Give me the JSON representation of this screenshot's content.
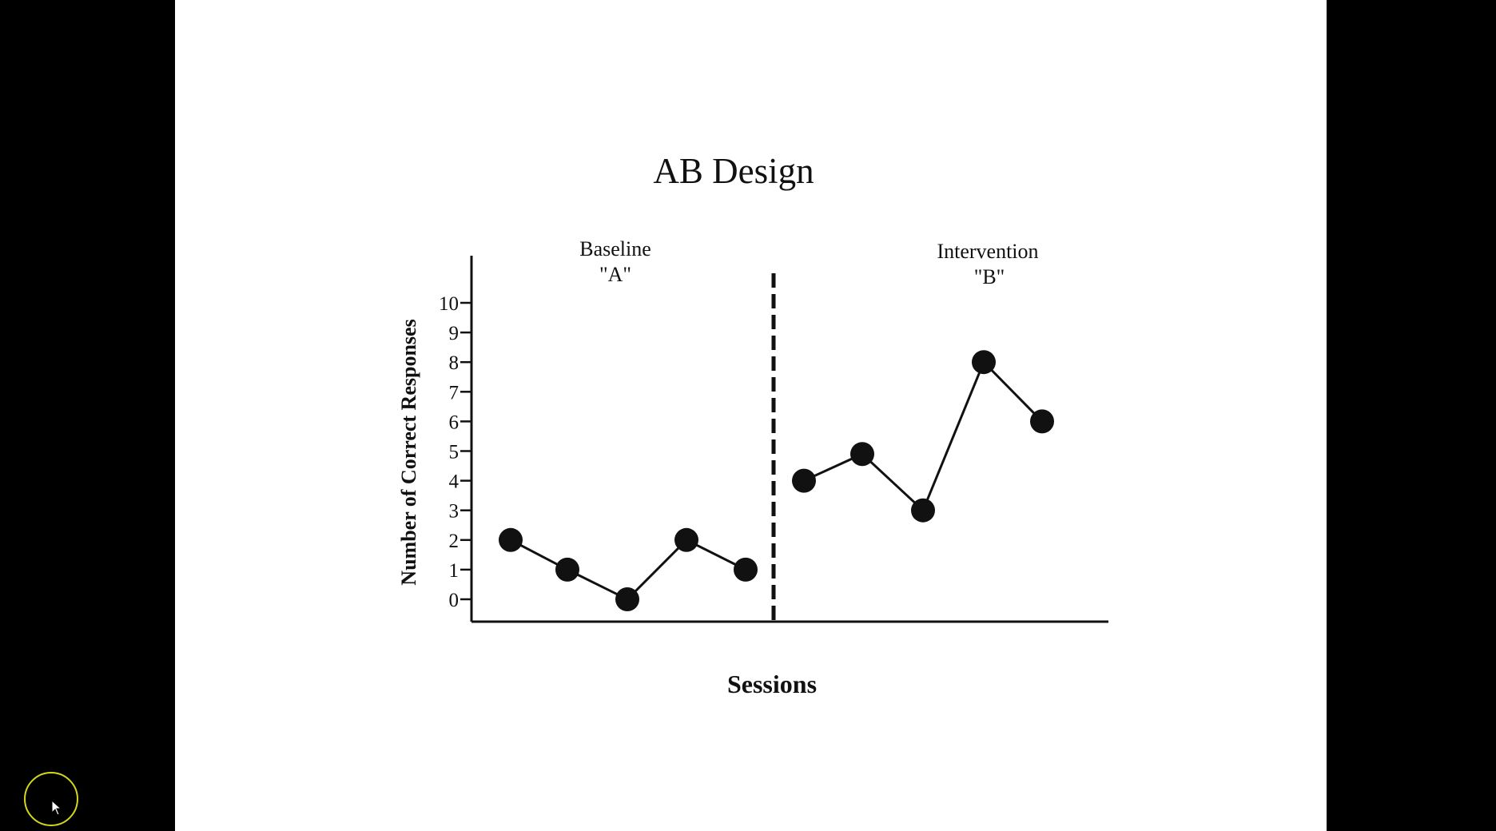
{
  "colors": {
    "background": "#000000",
    "slide": "#ffffff",
    "ink": "#111111",
    "cursor_ring": "#d6d61c"
  },
  "chart_data": {
    "type": "line",
    "title": "AB Design",
    "xlabel": "Sessions",
    "ylabel": "Number of Correct Responses",
    "ylim": [
      0,
      10
    ],
    "yticks": [
      "0",
      "1",
      "2",
      "3",
      "4",
      "5",
      "6",
      "7",
      "8",
      "9",
      "10"
    ],
    "grid": false,
    "phase_divider": "dashed vertical line between session 5 and session 6",
    "phases": [
      {
        "label_line1": "Baseline",
        "label_line2": "\"A\"",
        "sessions": [
          1,
          2,
          3,
          4,
          5
        ],
        "values": [
          2,
          1,
          0,
          2,
          1
        ]
      },
      {
        "label_line1": "Intervention",
        "label_line2": "\"B\"",
        "sessions": [
          6,
          7,
          8,
          9,
          10
        ],
        "values": [
          4,
          4.9,
          3,
          8,
          6
        ]
      }
    ]
  },
  "cursor": {
    "icon": "mouse-pointer-icon"
  }
}
